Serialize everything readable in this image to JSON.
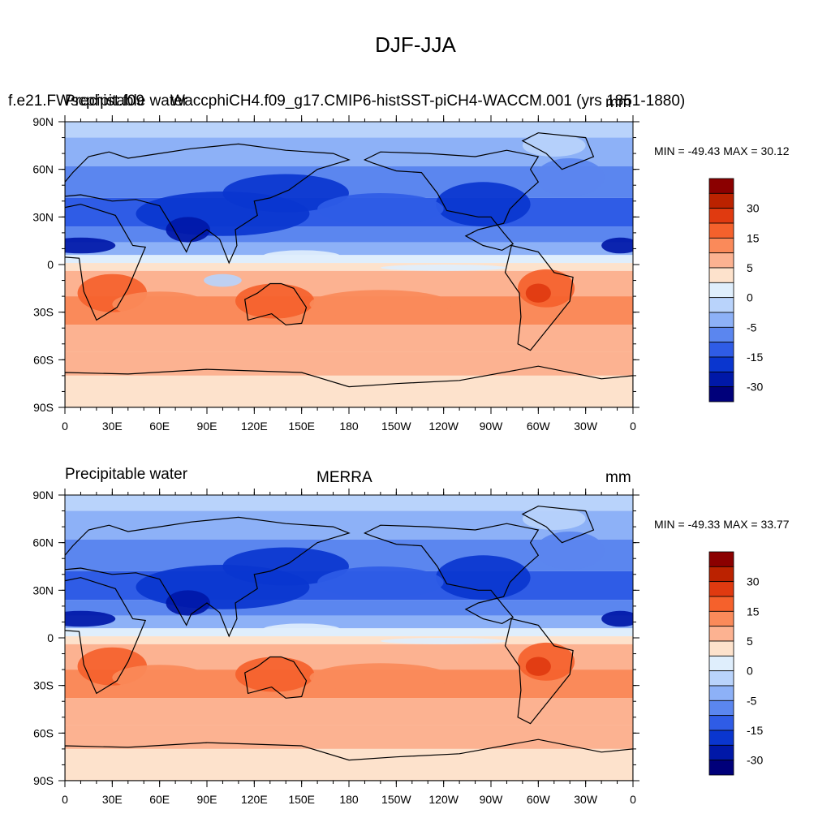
{
  "figure": {
    "title": "DJF-JJA"
  },
  "colors": {
    "levels": [
      "#8b0000",
      "#bb2200",
      "#e03a10",
      "#f5612c",
      "#fa8a5a",
      "#fcb291",
      "#fde2cc",
      "#dfeefc",
      "#b9d3fb",
      "#8db1f7",
      "#5b86ef",
      "#2f5ce6",
      "#0a36cf",
      "#0018a8",
      "#00007a"
    ],
    "ocean_cold": "#a6c2f8",
    "land_line": "#000000"
  },
  "map_axes": {
    "lat_labels": [
      "90N",
      "60N",
      "30N",
      "0",
      "30S",
      "60S",
      "90S"
    ],
    "lon_labels": [
      "0",
      "30E",
      "60E",
      "90E",
      "120E",
      "150E",
      "180",
      "150W",
      "120W",
      "90W",
      "60W",
      "30W",
      "0"
    ]
  },
  "colorbar": {
    "labels": [
      "30",
      "15",
      "5",
      "0",
      "-5",
      "-15",
      "-30"
    ]
  },
  "panels": [
    {
      "left_title": "f.e21.FWscphist.f09",
      "left_overlap": "Precipitable water",
      "center_title": "f.e21.FWscphist.f09_g17.CMIP6-histSST-piCH4-WACCM.001 (yrs 1851-1880)",
      "center_text": "WaccphiCH4.f09_g17.CMIP6-histSST-piCH4-WACCM.001 (yrs 1851-1880)",
      "units": "mm",
      "minmax": "MIN = -49.43 MAX =  30.12"
    },
    {
      "left_title": "Precipitable water",
      "center_title": "MERRA",
      "units": "mm",
      "minmax": "MIN = -49.33 MAX =  33.77"
    }
  ]
}
